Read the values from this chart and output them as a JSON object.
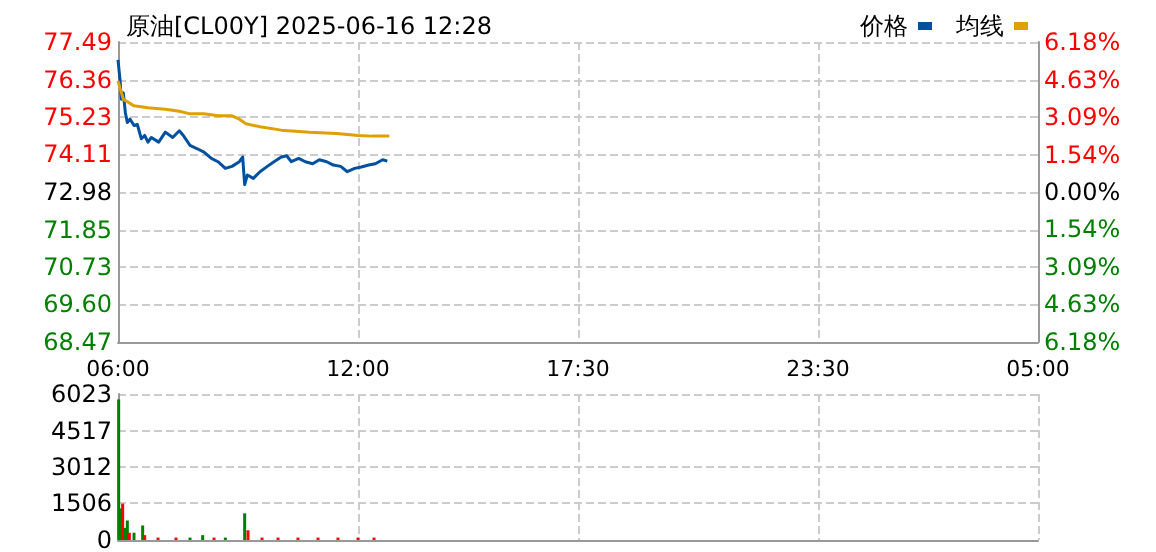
{
  "chart_data": [
    {
      "type": "line",
      "title": "原油[CL00Y] 2025-06-16 12:28",
      "series": [
        {
          "name": "价格",
          "color": "#0050a0",
          "x": [
            "2025-06-16T06:00",
            "2025-06-16T06:01",
            "2025-06-16T06:03",
            "2025-06-16T06:05",
            "2025-06-16T06:08",
            "2025-06-16T06:11",
            "2025-06-16T06:14",
            "2025-06-16T06:18",
            "2025-06-16T06:24",
            "2025-06-16T06:29",
            "2025-06-16T06:35",
            "2025-06-16T06:40",
            "2025-06-16T06:45",
            "2025-06-16T06:50",
            "2025-06-16T07:01",
            "2025-06-16T07:11",
            "2025-06-16T07:22",
            "2025-06-16T07:32",
            "2025-06-16T07:38",
            "2025-06-16T07:48",
            "2025-06-16T07:59",
            "2025-06-16T08:09",
            "2025-06-16T08:20",
            "2025-06-16T08:30",
            "2025-06-16T08:41",
            "2025-06-16T08:51",
            "2025-06-16T09:02",
            "2025-06-16T09:07",
            "2025-06-16T09:10",
            "2025-06-16T09:14",
            "2025-06-16T09:23",
            "2025-06-16T09:33",
            "2025-06-16T09:44",
            "2025-06-16T09:54",
            "2025-06-16T10:05",
            "2025-06-16T10:13",
            "2025-06-16T10:20",
            "2025-06-16T10:31",
            "2025-06-16T10:41",
            "2025-06-16T10:52",
            "2025-06-16T11:02",
            "2025-06-16T11:13",
            "2025-06-16T11:23",
            "2025-06-16T11:34",
            "2025-06-16T11:44",
            "2025-06-16T11:55",
            "2025-06-16T12:05",
            "2025-06-16T12:16",
            "2025-06-16T12:26",
            "2025-06-16T12:37",
            "2025-06-16T12:44"
          ],
          "values": [
            76.95,
            76.95,
            76.36,
            75.77,
            75.96,
            75.37,
            75.07,
            75.17,
            74.98,
            75.01,
            74.58,
            74.68,
            74.48,
            74.62,
            74.48,
            74.78,
            74.62,
            74.82,
            74.68,
            74.38,
            74.28,
            74.18,
            73.99,
            73.89,
            73.69,
            73.75,
            73.89,
            74.03,
            73.2,
            73.49,
            73.39,
            73.59,
            73.75,
            73.89,
            74.03,
            74.07,
            73.89,
            73.99,
            73.89,
            73.83,
            73.95,
            73.89,
            73.79,
            73.75,
            73.59,
            73.69,
            73.73,
            73.79,
            73.83,
            73.95,
            73.91
          ]
        },
        {
          "name": "均线",
          "color": "#e0a000",
          "x": [
            "2025-06-16T06:00",
            "2025-06-16T06:08",
            "2025-06-16T06:24",
            "2025-06-16T06:45",
            "2025-06-16T07:11",
            "2025-06-16T07:32",
            "2025-06-16T07:48",
            "2025-06-16T08:09",
            "2025-06-16T08:30",
            "2025-06-16T08:51",
            "2025-06-16T09:02",
            "2025-06-16T09:12",
            "2025-06-16T09:33",
            "2025-06-16T10:05",
            "2025-06-16T10:47",
            "2025-06-16T11:28",
            "2025-06-16T12:00",
            "2025-06-16T12:21",
            "2025-06-16T12:47"
          ],
          "values": [
            76.32,
            75.77,
            75.57,
            75.51,
            75.47,
            75.41,
            75.33,
            75.33,
            75.27,
            75.27,
            75.17,
            75.03,
            74.94,
            74.84,
            74.78,
            74.74,
            74.68,
            74.66,
            74.66
          ]
        }
      ],
      "xlim": [
        "2025-06-16T06:00",
        "2025-06-17T05:00"
      ],
      "xticks": [
        {
          "value": "2025-06-16T06:00",
          "label": "06:00"
        },
        {
          "value": "2025-06-16T12:00",
          "label": "12:00"
        },
        {
          "value": "2025-06-16T17:30",
          "label": "17:30"
        },
        {
          "value": "2025-06-16T23:30",
          "label": "23:30"
        },
        {
          "value": "2025-06-17T05:00",
          "label": "05:00"
        }
      ],
      "ylim": [
        68.47,
        77.49
      ],
      "yticks": [
        68.47,
        {
          "value": 69.6,
          "label": "69.60"
        },
        70.73,
        71.85,
        72.98,
        74.11,
        75.23,
        76.36,
        77.49
      ],
      "y2lim": [
        -6.18,
        6.18
      ],
      "y2ticks": [
        {
          "value": -6.18,
          "label": "6.18%"
        },
        {
          "value": -4.63,
          "label": "4.63%"
        },
        {
          "value": -3.09,
          "label": "3.09%"
        },
        {
          "value": -1.54,
          "label": "1.54%"
        },
        {
          "value": 0,
          "label": "0.00%"
        },
        {
          "value": 1.54,
          "label": "1.54%"
        },
        {
          "value": 3.09,
          "label": "3.09%"
        },
        {
          "value": 4.63,
          "label": "4.63%"
        },
        {
          "value": 6.18,
          "label": "6.18%"
        }
      ],
      "grid": true,
      "legend": "top right"
    },
    {
      "type": "bar",
      "x": [
        "2025-06-16T06:01",
        "2025-06-16T06:04",
        "2025-06-16T06:07",
        "2025-06-16T06:10",
        "2025-06-16T06:14",
        "2025-06-16T06:17",
        "2025-06-16T06:24",
        "2025-06-16T06:37",
        "2025-06-16T06:40",
        "2025-06-16T07:00",
        "2025-06-16T07:27",
        "2025-06-16T07:48",
        "2025-06-16T08:07",
        "2025-06-16T08:24",
        "2025-06-16T08:41",
        "2025-06-16T09:10",
        "2025-06-16T09:15",
        "2025-06-16T09:36",
        "2025-06-16T10:00",
        "2025-06-16T10:30",
        "2025-06-16T11:00",
        "2025-06-16T11:30",
        "2025-06-16T12:00",
        "2025-06-16T12:24"
      ],
      "values": [
        5800,
        1300,
        1500,
        500,
        800,
        300,
        300,
        600,
        200,
        100,
        100,
        100,
        200,
        100,
        100,
        1100,
        400,
        100,
        100,
        100,
        100,
        100,
        100,
        100
      ],
      "colors": [
        "#008000",
        "#008000",
        "#ff0000",
        "#008000",
        "#008000",
        "#ff0000",
        "#008000",
        "#008000",
        "#ff0000",
        "#ff0000",
        "#ff0000",
        "#008000",
        "#008000",
        "#ff0000",
        "#008000",
        "#008000",
        "#ff0000",
        "#ff0000",
        "#ff0000",
        "#ff0000",
        "#ff0000",
        "#ff0000",
        "#ff0000",
        "#ff0000"
      ],
      "xlim": [
        "2025-06-16T06:00",
        "2025-06-17T05:00"
      ],
      "xticks": [
        "2025-06-16T06:00",
        "2025-06-16T12:00",
        "2025-06-16T17:30",
        "2025-06-16T23:30",
        "2025-06-17T05:00"
      ],
      "ylim": [
        0,
        6023
      ],
      "yticks": [
        0,
        1506,
        3012,
        4517,
        6023
      ],
      "grid": true,
      "tick_labels": "y"
    }
  ]
}
